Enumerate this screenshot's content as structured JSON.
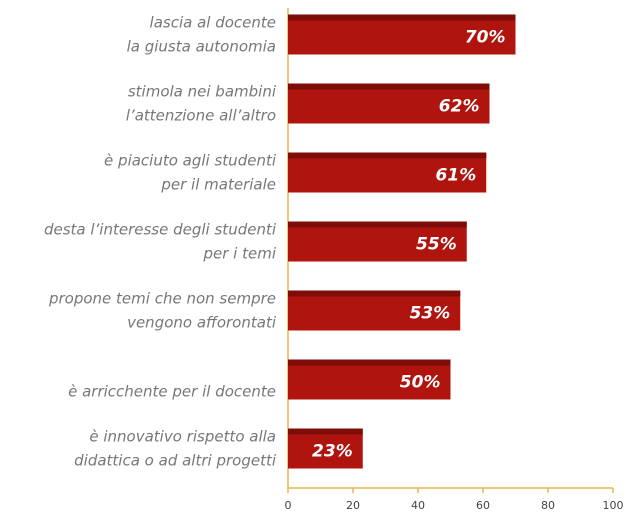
{
  "chart_data": {
    "type": "bar",
    "orientation": "horizontal",
    "categories": [
      [
        "lascia al  docente",
        "la giusta autonomia"
      ],
      [
        "stimola nei bambini",
        "l’attenzione all’altro"
      ],
      [
        "è piaciuto agli studenti",
        "per il materiale"
      ],
      [
        "desta l’interesse degli studenti",
        "per i temi"
      ],
      [
        "propone temi che non sempre",
        "vengono afforontati"
      ],
      [
        "è arricchente per il docente"
      ],
      [
        "è innovativo rispetto alla",
        "didattica o ad altri progetti"
      ]
    ],
    "values": [
      70,
      62,
      61,
      55,
      53,
      50,
      23
    ],
    "value_labels": [
      "70%",
      "62%",
      "61%",
      "55%",
      "53%",
      "50%",
      "23%"
    ],
    "color": "#b0140f",
    "xlim": [
      0,
      100
    ],
    "xticks": [
      0,
      20,
      40,
      60,
      80,
      100
    ],
    "grid": false
  }
}
